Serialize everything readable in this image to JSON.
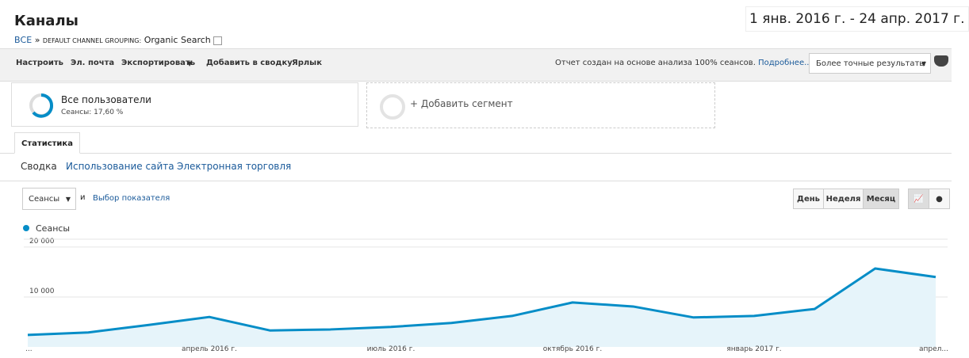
{
  "header": {
    "title": "Каналы",
    "date_range": "1 янв. 2016 г. - 24 апр. 2017 г.",
    "breadcrumb_all": "ВСЕ",
    "breadcrumb_sep": "»",
    "breadcrumb_dim": "DEFAULT CHANNEL GROUPING:",
    "breadcrumb_value": "Organic Search"
  },
  "toolbar": {
    "items": [
      "Настроить",
      "Эл. почта",
      "Экспортировать",
      "Добавить в сводку",
      "Ярлык"
    ],
    "note": "Отчет создан на основе анализа 100% сеансов.",
    "more": "Подробнее...",
    "precision": "Более точные результаты"
  },
  "segments": {
    "name": "Все пользователи",
    "detail": "Сеансы: 17,60 %",
    "add": "+ Добавить сегмент"
  },
  "tabs": {
    "active": "Статистика",
    "subtabs": [
      "Сводка",
      "Использование сайта",
      "Электронная торговля"
    ]
  },
  "controls": {
    "metric": "Сеансы",
    "and": "и",
    "select": "Выбор показателя",
    "periods": [
      "День",
      "Неделя",
      "Месяц"
    ]
  },
  "chart_data": {
    "type": "line",
    "area": true,
    "categories": [
      "...",
      null,
      null,
      "апрель 2016 г.",
      null,
      null,
      "июль 2016 г.",
      null,
      null,
      "октябрь 2016 г.",
      null,
      null,
      "январь 2017 г.",
      null,
      null,
      "апрел..."
    ],
    "series": [
      {
        "name": "Сеансы",
        "color": "#058dc7",
        "values": [
          2400,
          2900,
          4400,
          6000,
          3300,
          3500,
          4000,
          4800,
          6200,
          8900,
          8100,
          5900,
          6200,
          7600,
          15700,
          14000
        ]
      }
    ],
    "ylim": [
      0,
      21100
    ],
    "yticks": [
      {
        "value": 10000,
        "label": "10 000"
      },
      {
        "value": 20000,
        "label": "20 000"
      }
    ],
    "grid": true
  }
}
